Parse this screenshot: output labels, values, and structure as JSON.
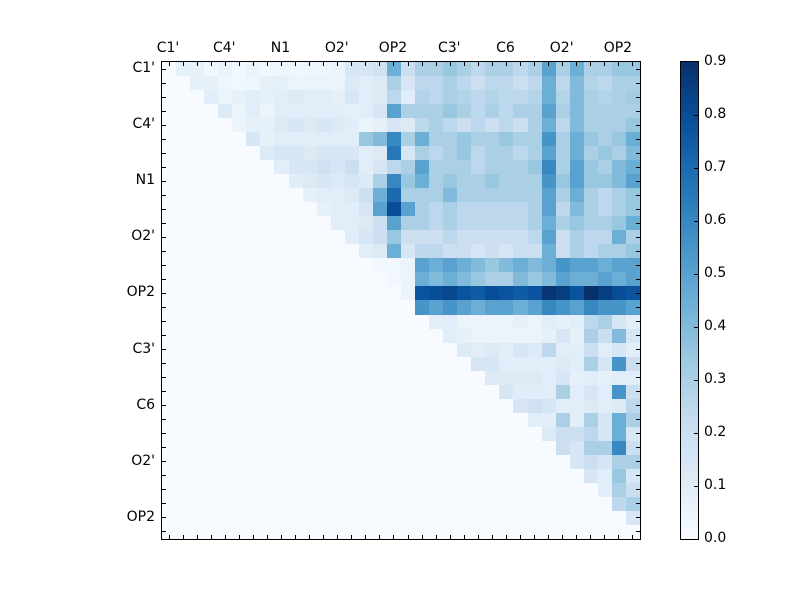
{
  "chart_data": {
    "type": "heatmap",
    "title": "",
    "xlabel": "",
    "ylabel": "",
    "n": 34,
    "colormap": "Blues",
    "vmin": 0.0,
    "vmax": 0.9,
    "legend_position": "right-colorbar",
    "grid": false,
    "tick_label_positions": [
      0,
      4,
      8,
      12,
      16,
      20,
      24,
      28,
      32
    ],
    "x_ticklabels": [
      "C1'",
      "C4'",
      "N1",
      "O2'",
      "OP2",
      "C3'",
      "C6",
      "O2'",
      "OP2"
    ],
    "y_ticklabels": [
      "C1'",
      "C4'",
      "N1",
      "O2'",
      "OP2",
      "C3'",
      "C6",
      "O2'",
      "OP2"
    ],
    "colorbar_ticklabels": [
      "0.0",
      "0.1",
      "0.2",
      "0.3",
      "0.4",
      "0.5",
      "0.6",
      "0.7",
      "0.8",
      "0.9"
    ],
    "colorbar_tick_values": [
      0.0,
      0.1,
      0.2,
      0.3,
      0.4,
      0.5,
      0.6,
      0.7,
      0.8,
      0.9
    ],
    "matrix": [
      [
        0,
        0.07,
        0.07,
        0.03,
        0.06,
        0.02,
        0.05,
        0.03,
        0.04,
        0.03,
        0.04,
        0.04,
        0.05,
        0.15,
        0.15,
        0.18,
        0.45,
        0.2,
        0.3,
        0.3,
        0.35,
        0.3,
        0.25,
        0.3,
        0.3,
        0.25,
        0.3,
        0.5,
        0.3,
        0.45,
        0.3,
        0.3,
        0.35,
        0.35
      ],
      [
        0,
        0,
        0.08,
        0.07,
        0.04,
        0.03,
        0.04,
        0.08,
        0.08,
        0.05,
        0.05,
        0.05,
        0.05,
        0.12,
        0.1,
        0.12,
        0.3,
        0.15,
        0.25,
        0.25,
        0.3,
        0.25,
        0.2,
        0.25,
        0.25,
        0.2,
        0.25,
        0.45,
        0.25,
        0.4,
        0.28,
        0.25,
        0.3,
        0.3
      ],
      [
        0,
        0,
        0,
        0.1,
        0.05,
        0.08,
        0.1,
        0.08,
        0.1,
        0.12,
        0.1,
        0.1,
        0.08,
        0.15,
        0.1,
        0.12,
        0.25,
        0.1,
        0.28,
        0.25,
        0.3,
        0.28,
        0.25,
        0.28,
        0.25,
        0.25,
        0.28,
        0.45,
        0.28,
        0.4,
        0.3,
        0.28,
        0.3,
        0.32
      ],
      [
        0,
        0,
        0,
        0,
        0.12,
        0.05,
        0.1,
        0.05,
        0.1,
        0.1,
        0.1,
        0.1,
        0.1,
        0.08,
        0.1,
        0.15,
        0.5,
        0.3,
        0.3,
        0.3,
        0.35,
        0.3,
        0.25,
        0.3,
        0.25,
        0.3,
        0.3,
        0.5,
        0.3,
        0.4,
        0.3,
        0.3,
        0.3,
        0.3
      ],
      [
        0,
        0,
        0,
        0,
        0,
        0.05,
        0.08,
        0.08,
        0.12,
        0.15,
        0.12,
        0.15,
        0.12,
        0.1,
        0.05,
        0.08,
        0.15,
        0.12,
        0.25,
        0.3,
        0.25,
        0.2,
        0.25,
        0.2,
        0.25,
        0.2,
        0.3,
        0.45,
        0.25,
        0.4,
        0.3,
        0.3,
        0.3,
        0.35
      ],
      [
        0,
        0,
        0,
        0,
        0,
        0,
        0.15,
        0.08,
        0.1,
        0.1,
        0.1,
        0.1,
        0.1,
        0.1,
        0.35,
        0.4,
        0.6,
        0.3,
        0.45,
        0.3,
        0.3,
        0.35,
        0.3,
        0.3,
        0.35,
        0.3,
        0.3,
        0.55,
        0.3,
        0.45,
        0.35,
        0.3,
        0.35,
        0.45
      ],
      [
        0,
        0,
        0,
        0,
        0,
        0,
        0,
        0.12,
        0.15,
        0.15,
        0.12,
        0.15,
        0.15,
        0.15,
        0.1,
        0.12,
        0.65,
        0.15,
        0.3,
        0.25,
        0.3,
        0.35,
        0.25,
        0.3,
        0.3,
        0.25,
        0.3,
        0.5,
        0.3,
        0.45,
        0.3,
        0.35,
        0.3,
        0.4
      ],
      [
        0,
        0,
        0,
        0,
        0,
        0,
        0,
        0,
        0.1,
        0.15,
        0.15,
        0.18,
        0.15,
        0.2,
        0.1,
        0.15,
        0.25,
        0.3,
        0.5,
        0.3,
        0.3,
        0.3,
        0.25,
        0.3,
        0.3,
        0.3,
        0.35,
        0.6,
        0.3,
        0.5,
        0.35,
        0.3,
        0.4,
        0.45
      ],
      [
        0,
        0,
        0,
        0,
        0,
        0,
        0,
        0,
        0,
        0.1,
        0.12,
        0.15,
        0.12,
        0.15,
        0.12,
        0.3,
        0.6,
        0.35,
        0.45,
        0.3,
        0.35,
        0.3,
        0.3,
        0.35,
        0.3,
        0.3,
        0.3,
        0.55,
        0.35,
        0.5,
        0.35,
        0.35,
        0.4,
        0.5
      ],
      [
        0,
        0,
        0,
        0,
        0,
        0,
        0,
        0,
        0,
        0,
        0.08,
        0.1,
        0.1,
        0.12,
        0.2,
        0.45,
        0.7,
        0.3,
        0.3,
        0.3,
        0.4,
        0.3,
        0.3,
        0.3,
        0.3,
        0.3,
        0.3,
        0.5,
        0.3,
        0.45,
        0.3,
        0.25,
        0.3,
        0.35
      ],
      [
        0,
        0,
        0,
        0,
        0,
        0,
        0,
        0,
        0,
        0,
        0,
        0.08,
        0.1,
        0.1,
        0.15,
        0.5,
        0.8,
        0.5,
        0.3,
        0.25,
        0.3,
        0.25,
        0.25,
        0.25,
        0.25,
        0.25,
        0.3,
        0.5,
        0.25,
        0.4,
        0.3,
        0.25,
        0.3,
        0.35
      ],
      [
        0,
        0,
        0,
        0,
        0,
        0,
        0,
        0,
        0,
        0,
        0,
        0,
        0.1,
        0.1,
        0.12,
        0.2,
        0.5,
        0.3,
        0.3,
        0.25,
        0.3,
        0.25,
        0.25,
        0.25,
        0.25,
        0.25,
        0.3,
        0.45,
        0.3,
        0.35,
        0.3,
        0.3,
        0.35,
        0.45
      ],
      [
        0,
        0,
        0,
        0,
        0,
        0,
        0,
        0,
        0,
        0,
        0,
        0,
        0,
        0.1,
        0.15,
        0.2,
        0.35,
        0.2,
        0.2,
        0.2,
        0.25,
        0.2,
        0.2,
        0.2,
        0.2,
        0.2,
        0.25,
        0.5,
        0.2,
        0.3,
        0.25,
        0.25,
        0.45,
        0.3
      ],
      [
        0,
        0,
        0,
        0,
        0,
        0,
        0,
        0,
        0,
        0,
        0,
        0,
        0,
        0,
        0.1,
        0.12,
        0.45,
        0.15,
        0.25,
        0.25,
        0.2,
        0.2,
        0.15,
        0.2,
        0.15,
        0.2,
        0.2,
        0.45,
        0.2,
        0.3,
        0.25,
        0.3,
        0.3,
        0.35
      ],
      [
        0,
        0,
        0,
        0,
        0,
        0,
        0,
        0,
        0,
        0,
        0,
        0,
        0,
        0,
        0,
        0.03,
        0.03,
        0.05,
        0.5,
        0.45,
        0.5,
        0.45,
        0.4,
        0.35,
        0.4,
        0.45,
        0.4,
        0.45,
        0.55,
        0.5,
        0.5,
        0.45,
        0.5,
        0.5
      ],
      [
        0,
        0,
        0,
        0,
        0,
        0,
        0,
        0,
        0,
        0,
        0,
        0,
        0,
        0,
        0,
        0,
        0.03,
        0.05,
        0.45,
        0.4,
        0.45,
        0.4,
        0.35,
        0.3,
        0.3,
        0.4,
        0.35,
        0.4,
        0.5,
        0.45,
        0.45,
        0.5,
        0.45,
        0.5
      ],
      [
        0,
        0,
        0,
        0,
        0,
        0,
        0,
        0,
        0,
        0,
        0,
        0,
        0,
        0,
        0,
        0,
        0,
        0.05,
        0.78,
        0.8,
        0.82,
        0.78,
        0.75,
        0.8,
        0.78,
        0.75,
        0.78,
        0.88,
        0.85,
        0.78,
        0.9,
        0.85,
        0.8,
        0.78
      ],
      [
        0,
        0,
        0,
        0,
        0,
        0,
        0,
        0,
        0,
        0,
        0,
        0,
        0,
        0,
        0,
        0,
        0,
        0,
        0.55,
        0.5,
        0.55,
        0.5,
        0.45,
        0.5,
        0.5,
        0.45,
        0.5,
        0.6,
        0.55,
        0.5,
        0.6,
        0.55,
        0.55,
        0.5
      ],
      [
        0,
        0,
        0,
        0,
        0,
        0,
        0,
        0,
        0,
        0,
        0,
        0,
        0,
        0,
        0,
        0,
        0,
        0,
        0,
        0.1,
        0.1,
        0.05,
        0.05,
        0.05,
        0.05,
        0.08,
        0.05,
        0.1,
        0.08,
        0.1,
        0.25,
        0.3,
        0.15,
        0.1
      ],
      [
        0,
        0,
        0,
        0,
        0,
        0,
        0,
        0,
        0,
        0,
        0,
        0,
        0,
        0,
        0,
        0,
        0,
        0,
        0,
        0,
        0.1,
        0.08,
        0.05,
        0.05,
        0.05,
        0.05,
        0.05,
        0.08,
        0.15,
        0.08,
        0.3,
        0.2,
        0.4,
        0.15
      ],
      [
        0,
        0,
        0,
        0,
        0,
        0,
        0,
        0,
        0,
        0,
        0,
        0,
        0,
        0,
        0,
        0,
        0,
        0,
        0,
        0,
        0,
        0.12,
        0.1,
        0.12,
        0.1,
        0.15,
        0.12,
        0.25,
        0.1,
        0.1,
        0.2,
        0.1,
        0.15,
        0.1
      ],
      [
        0,
        0,
        0,
        0,
        0,
        0,
        0,
        0,
        0,
        0,
        0,
        0,
        0,
        0,
        0,
        0,
        0,
        0,
        0,
        0,
        0,
        0,
        0.15,
        0.15,
        0.1,
        0.1,
        0.1,
        0.1,
        0.12,
        0.1,
        0.3,
        0.15,
        0.55,
        0.2
      ],
      [
        0,
        0,
        0,
        0,
        0,
        0,
        0,
        0,
        0,
        0,
        0,
        0,
        0,
        0,
        0,
        0,
        0,
        0,
        0,
        0,
        0,
        0,
        0,
        0.12,
        0.12,
        0.12,
        0.12,
        0.1,
        0.15,
        0.08,
        0.1,
        0.08,
        0.1,
        0.1
      ],
      [
        0,
        0,
        0,
        0,
        0,
        0,
        0,
        0,
        0,
        0,
        0,
        0,
        0,
        0,
        0,
        0,
        0,
        0,
        0,
        0,
        0,
        0,
        0,
        0,
        0.15,
        0.1,
        0.1,
        0.1,
        0.3,
        0.1,
        0.15,
        0.1,
        0.55,
        0.2
      ],
      [
        0,
        0,
        0,
        0,
        0,
        0,
        0,
        0,
        0,
        0,
        0,
        0,
        0,
        0,
        0,
        0,
        0,
        0,
        0,
        0,
        0,
        0,
        0,
        0,
        0,
        0.15,
        0.18,
        0.15,
        0.1,
        0.1,
        0.12,
        0.1,
        0.12,
        0.25
      ],
      [
        0,
        0,
        0,
        0,
        0,
        0,
        0,
        0,
        0,
        0,
        0,
        0,
        0,
        0,
        0,
        0,
        0,
        0,
        0,
        0,
        0,
        0,
        0,
        0,
        0,
        0,
        0.1,
        0.1,
        0.3,
        0.1,
        0.3,
        0.15,
        0.45,
        0.3
      ],
      [
        0,
        0,
        0,
        0,
        0,
        0,
        0,
        0,
        0,
        0,
        0,
        0,
        0,
        0,
        0,
        0,
        0,
        0,
        0,
        0,
        0,
        0,
        0,
        0,
        0,
        0,
        0,
        0.12,
        0.2,
        0.2,
        0.25,
        0.15,
        0.45,
        0.15
      ],
      [
        0,
        0,
        0,
        0,
        0,
        0,
        0,
        0,
        0,
        0,
        0,
        0,
        0,
        0,
        0,
        0,
        0,
        0,
        0,
        0,
        0,
        0,
        0,
        0,
        0,
        0,
        0,
        0,
        0.2,
        0.15,
        0.3,
        0.3,
        0.6,
        0.2
      ],
      [
        0,
        0,
        0,
        0,
        0,
        0,
        0,
        0,
        0,
        0,
        0,
        0,
        0,
        0,
        0,
        0,
        0,
        0,
        0,
        0,
        0,
        0,
        0,
        0,
        0,
        0,
        0,
        0,
        0,
        0.15,
        0.2,
        0.15,
        0.3,
        0.3
      ],
      [
        0,
        0,
        0,
        0,
        0,
        0,
        0,
        0,
        0,
        0,
        0,
        0,
        0,
        0,
        0,
        0,
        0,
        0,
        0,
        0,
        0,
        0,
        0,
        0,
        0,
        0,
        0,
        0,
        0,
        0,
        0.15,
        0.1,
        0.35,
        0.15
      ],
      [
        0,
        0,
        0,
        0,
        0,
        0,
        0,
        0,
        0,
        0,
        0,
        0,
        0,
        0,
        0,
        0,
        0,
        0,
        0,
        0,
        0,
        0,
        0,
        0,
        0,
        0,
        0,
        0,
        0,
        0,
        0,
        0.1,
        0.3,
        0.2
      ],
      [
        0,
        0,
        0,
        0,
        0,
        0,
        0,
        0,
        0,
        0,
        0,
        0,
        0,
        0,
        0,
        0,
        0,
        0,
        0,
        0,
        0,
        0,
        0,
        0,
        0,
        0,
        0,
        0,
        0,
        0,
        0,
        0,
        0.25,
        0.3
      ],
      [
        0,
        0,
        0,
        0,
        0,
        0,
        0,
        0,
        0,
        0,
        0,
        0,
        0,
        0,
        0,
        0,
        0,
        0,
        0,
        0,
        0,
        0,
        0,
        0,
        0,
        0,
        0,
        0,
        0,
        0,
        0,
        0,
        0,
        0.15
      ],
      [
        0,
        0,
        0,
        0,
        0,
        0,
        0,
        0,
        0,
        0,
        0,
        0,
        0,
        0,
        0,
        0,
        0,
        0,
        0,
        0,
        0,
        0,
        0,
        0,
        0,
        0,
        0,
        0,
        0,
        0,
        0,
        0,
        0,
        0
      ]
    ]
  },
  "colors": {
    "background": "#ffffff",
    "axis": "#000000",
    "cmap_anchor_hex": [
      "#f7fbff",
      "#deebf7",
      "#c6dbef",
      "#9ecae1",
      "#6baed6",
      "#4292c6",
      "#2171b5",
      "#08519c",
      "#08306b"
    ]
  }
}
